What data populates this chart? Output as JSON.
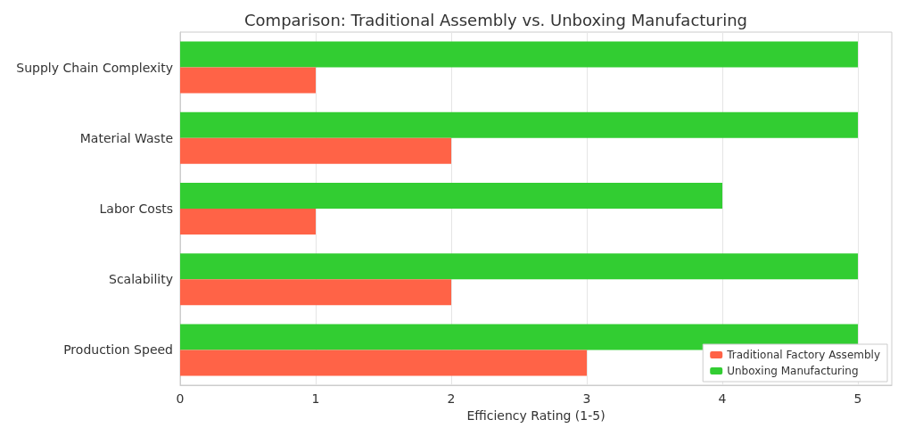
{
  "chart_data": {
    "type": "bar",
    "orientation": "horizontal",
    "title": "Comparison: Traditional Assembly vs. Unboxing Manufacturing",
    "xlabel": "Efficiency Rating (1-5)",
    "categories": [
      "Supply Chain Complexity",
      "Material Waste",
      "Labor Costs",
      "Scalability",
      "Production Speed"
    ],
    "series": [
      {
        "name": "Traditional Factory Assembly",
        "color": "#ff6347",
        "values": [
          1,
          2,
          1,
          2,
          3
        ]
      },
      {
        "name": "Unboxing Manufacturing",
        "color": "#32cd32",
        "values": [
          5,
          5,
          4,
          5,
          5
        ]
      }
    ],
    "xlim": [
      0,
      5.25
    ],
    "xticks": [
      0,
      1,
      2,
      3,
      4,
      5
    ],
    "grid": true,
    "legend": "bottom right"
  }
}
